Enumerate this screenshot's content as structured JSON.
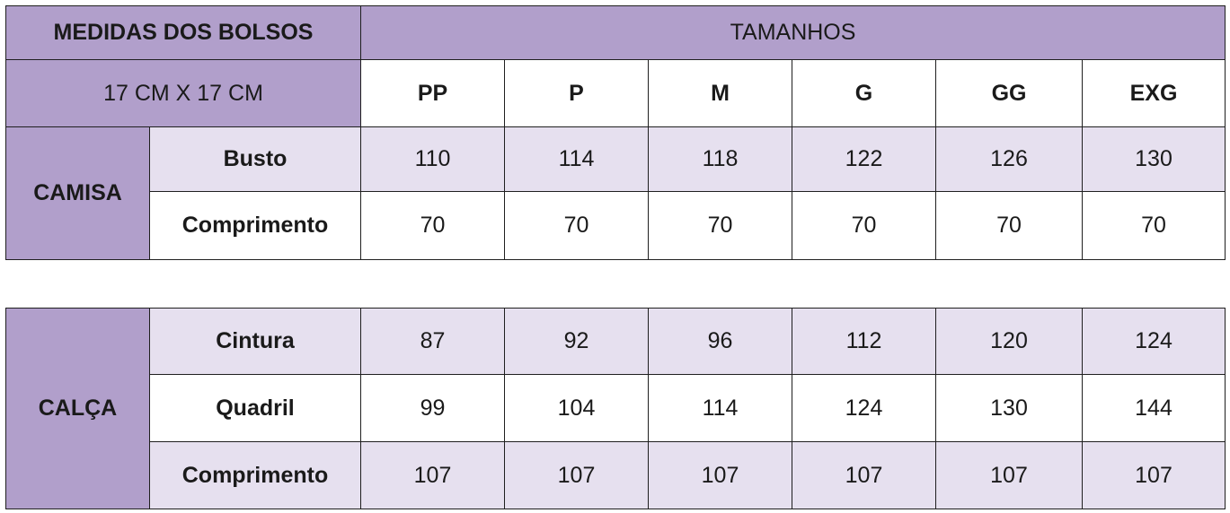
{
  "header": {
    "pocket_title": "MEDIDAS DOS BOLSOS",
    "pocket_size": "17 CM X 17 CM",
    "sizes_title": "TAMANHOS",
    "sizes": [
      "PP",
      "P",
      "M",
      "G",
      "GG",
      "EXG"
    ]
  },
  "camisa": {
    "label": "CAMISA",
    "rows": [
      {
        "measure": "Busto",
        "values": [
          "110",
          "114",
          "118",
          "122",
          "126",
          "130"
        ]
      },
      {
        "measure": "Comprimento",
        "values": [
          "70",
          "70",
          "70",
          "70",
          "70",
          "70"
        ]
      }
    ]
  },
  "calca": {
    "label": "CALÇA",
    "rows": [
      {
        "measure": "Cintura",
        "values": [
          "87",
          "92",
          "96",
          "112",
          "120",
          "124"
        ]
      },
      {
        "measure": "Quadril",
        "values": [
          "99",
          "104",
          "114",
          "124",
          "130",
          "144"
        ]
      },
      {
        "measure": "Comprimento",
        "values": [
          "107",
          "107",
          "107",
          "107",
          "107",
          "107"
        ]
      }
    ]
  },
  "colors": {
    "header_purple": "#b19fcb",
    "row_light": "#e6e0ef",
    "row_white": "#ffffff"
  }
}
